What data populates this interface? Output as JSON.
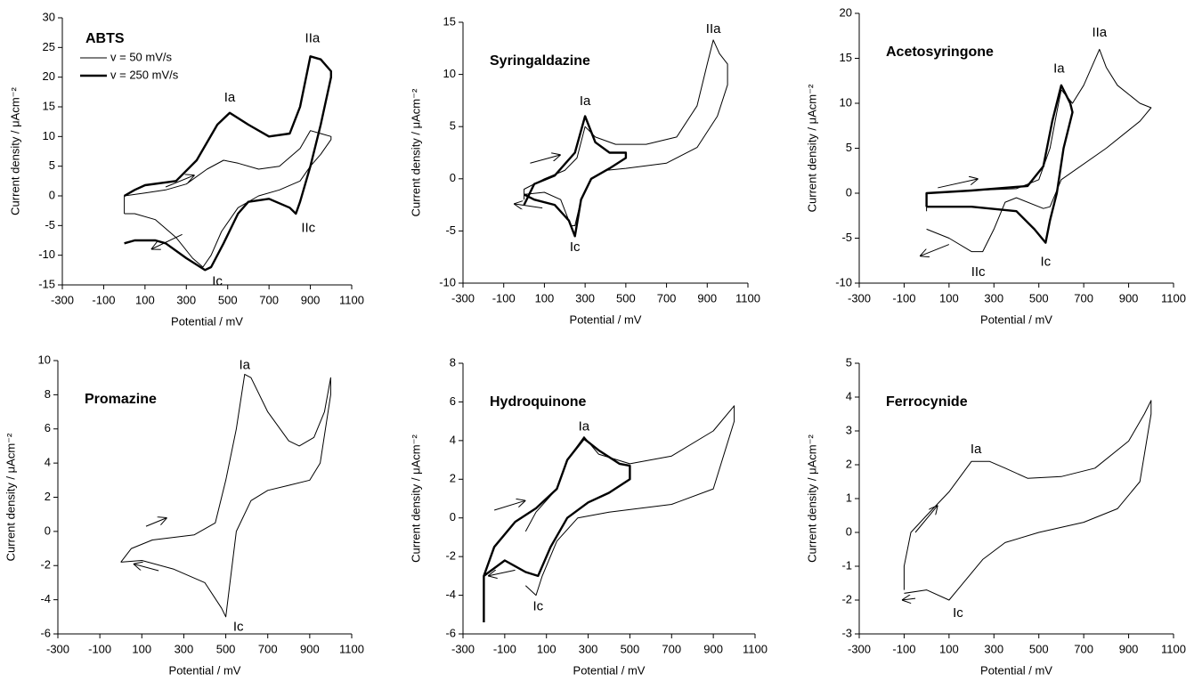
{
  "chart_data": [
    {
      "type": "line",
      "title": "ABTS",
      "xlabel": "Potential / mV",
      "ylabel": "Current density / μAcm⁻²",
      "xlim": [
        -300,
        1100
      ],
      "xticks": [
        -300,
        -100,
        100,
        300,
        500,
        700,
        900,
        1100
      ],
      "ylim": [
        -15,
        30
      ],
      "yticks": [
        -15,
        -10,
        -5,
        0,
        5,
        10,
        15,
        20,
        25,
        30
      ],
      "legend": "upper left",
      "series": [
        {
          "name": "v = 50 mV/s",
          "color": "#000000",
          "linewidth": 1,
          "x": [
            0,
            0,
            100,
            200,
            300,
            400,
            480,
            550,
            650,
            750,
            850,
            900,
            950,
            1000,
            1000,
            950,
            900,
            850,
            750,
            650,
            550,
            470,
            420,
            380,
            330,
            250,
            150,
            50,
            0
          ],
          "values": [
            -3,
            0,
            0.5,
            1,
            2,
            4.5,
            6,
            5.5,
            4.5,
            5,
            8,
            11,
            10.5,
            10,
            9.5,
            7,
            5,
            2.5,
            1,
            0,
            -2,
            -6,
            -10,
            -12,
            -10.5,
            -7,
            -4,
            -3,
            -3
          ]
        },
        {
          "name": "v = 250 mV/s",
          "color": "#000000",
          "linewidth": 2.4,
          "x": [
            0,
            50,
            100,
            250,
            350,
            450,
            510,
            600,
            700,
            800,
            850,
            900,
            950,
            1000,
            1000,
            950,
            900,
            850,
            830,
            800,
            700,
            600,
            550,
            480,
            420,
            390,
            300,
            200,
            150,
            50,
            0
          ],
          "values": [
            0,
            1,
            1.8,
            2.5,
            6,
            12,
            14,
            12,
            10,
            10.5,
            15,
            23.5,
            23,
            21,
            20,
            12,
            5,
            -1,
            -3,
            -2,
            -0.5,
            -1,
            -3,
            -8,
            -12,
            -12.5,
            -10.5,
            -8,
            -7.5,
            -7.5,
            -8
          ]
        }
      ],
      "annotations": [
        {
          "text": "Ia",
          "x": 510,
          "y": 16.5
        },
        {
          "text": "IIa",
          "x": 910,
          "y": 26.5
        },
        {
          "text": "IIc",
          "x": 890,
          "y": -5.5
        },
        {
          "text": "Ic",
          "x": 450,
          "y": -14.5
        }
      ],
      "arrows": [
        [
          200,
          1.5,
          340,
          3.5
        ],
        [
          280,
          -6.5,
          130,
          -9
        ]
      ]
    },
    {
      "type": "line",
      "title": "Syringaldazine",
      "xlabel": "Potential / mV",
      "ylabel": "Current density / μAcm⁻²",
      "xlim": [
        -300,
        1100
      ],
      "xticks": [
        -300,
        -100,
        100,
        300,
        500,
        700,
        900,
        1100
      ],
      "ylim": [
        -10,
        15
      ],
      "yticks": [
        -10,
        -5,
        0,
        5,
        10,
        15
      ],
      "series": [
        {
          "color": "#000000",
          "linewidth": 1,
          "x": [
            0,
            0,
            100,
            200,
            260,
            300,
            350,
            450,
            600,
            750,
            850,
            900,
            930,
            960,
            1000,
            1000,
            950,
            850,
            700,
            500,
            400,
            330,
            280,
            250,
            230,
            180,
            100,
            0
          ],
          "values": [
            -2,
            -1,
            0,
            0.8,
            2,
            5,
            4,
            3.3,
            3.3,
            4,
            7,
            11,
            13.3,
            12,
            11,
            9,
            6,
            3,
            1.5,
            1,
            0.8,
            0,
            -2,
            -4.5,
            -4.5,
            -2,
            -1.3,
            -1.5
          ]
        },
        {
          "color": "#000000",
          "linewidth": 2.4,
          "x": [
            0,
            50,
            150,
            250,
            300,
            350,
            420,
            500,
            500,
            420,
            330,
            280,
            250,
            220,
            150,
            50,
            0
          ],
          "values": [
            -2.5,
            -0.5,
            0.3,
            2.5,
            6,
            3.5,
            2.5,
            2.5,
            2,
            1,
            0,
            -2,
            -5.5,
            -4,
            -2.5,
            -2,
            -1.5
          ]
        }
      ],
      "annotations": [
        {
          "text": "Ia",
          "x": 300,
          "y": 7.4
        },
        {
          "text": "IIa",
          "x": 930,
          "y": 14.3
        },
        {
          "text": "Ic",
          "x": 250,
          "y": -6.6
        }
      ],
      "arrows": [
        [
          30,
          1.5,
          180,
          2.3
        ],
        [
          90,
          -2.8,
          -50,
          -2.4
        ]
      ]
    },
    {
      "type": "line",
      "title": "Acetosyringone",
      "xlabel": "Potential / mV",
      "ylabel": "Current density / μAcm⁻²",
      "xlim": [
        -300,
        1100
      ],
      "xticks": [
        -300,
        -100,
        100,
        300,
        500,
        700,
        900,
        1100
      ],
      "ylim": [
        -10,
        20
      ],
      "yticks": [
        -10,
        -5,
        0,
        5,
        10,
        15,
        20
      ],
      "series": [
        {
          "color": "#000000",
          "linewidth": 1,
          "x": [
            0,
            0,
            200,
            400,
            500,
            550,
            580,
            600,
            650,
            700,
            770,
            800,
            850,
            950,
            1000,
            950,
            800,
            600,
            550,
            520,
            400,
            350,
            300,
            250,
            200,
            100,
            0
          ],
          "values": [
            -2,
            0,
            0.3,
            0.5,
            1.5,
            5,
            9,
            11.5,
            10,
            12,
            16,
            14,
            12,
            10,
            9.5,
            8,
            5,
            1.5,
            -1.5,
            -1.7,
            -0.5,
            -1,
            -4,
            -6.5,
            -6.5,
            -5,
            -4
          ]
        },
        {
          "color": "#000000",
          "linewidth": 2.4,
          "x": [
            0,
            0,
            200,
            450,
            520,
            560,
            600,
            640,
            650,
            610,
            580,
            550,
            530,
            480,
            400,
            200,
            0
          ],
          "values": [
            -1.5,
            0,
            0.3,
            0.8,
            3,
            8,
            12,
            10,
            9,
            5,
            0,
            -3,
            -5.5,
            -4,
            -2,
            -1.5,
            -1.5
          ]
        }
      ],
      "annotations": [
        {
          "text": "Ia",
          "x": 590,
          "y": 13.8
        },
        {
          "text": "IIa",
          "x": 770,
          "y": 17.8
        },
        {
          "text": "IIc",
          "x": 230,
          "y": -8.8
        },
        {
          "text": "Ic",
          "x": 530,
          "y": -7.7
        }
      ],
      "arrows": [
        [
          50,
          0.6,
          230,
          1.6
        ],
        [
          100,
          -5.7,
          -30,
          -7
        ]
      ]
    },
    {
      "type": "line",
      "title": "Promazine",
      "xlabel": "Potential / mV",
      "ylabel": "Current density / μAcm⁻²",
      "xlim": [
        -300,
        1100
      ],
      "xticks": [
        -300,
        -100,
        100,
        300,
        500,
        700,
        900,
        1100
      ],
      "ylim": [
        -6,
        10
      ],
      "yticks": [
        -6,
        -4,
        -2,
        0,
        2,
        4,
        6,
        8,
        10
      ],
      "series": [
        {
          "color": "#000000",
          "linewidth": 1,
          "x": [
            0,
            50,
            150,
            350,
            450,
            500,
            550,
            590,
            620,
            700,
            800,
            850,
            920,
            970,
            1000,
            1000,
            950,
            900,
            800,
            700,
            620,
            550,
            520,
            500,
            480,
            400,
            250,
            100,
            0
          ],
          "values": [
            -1.8,
            -1,
            -0.5,
            -0.2,
            0.5,
            3,
            6,
            9.2,
            9,
            7,
            5.3,
            5,
            5.5,
            7,
            9,
            8,
            4,
            3,
            2.7,
            2.4,
            1.8,
            0,
            -3,
            -5,
            -4.5,
            -3,
            -2.2,
            -1.7,
            -1.8
          ]
        }
      ],
      "annotations": [
        {
          "text": "Ia",
          "x": 590,
          "y": 9.7
        },
        {
          "text": "Ic",
          "x": 560,
          "y": -5.6
        }
      ],
      "arrows": [
        [
          120,
          0.3,
          220,
          0.8
        ],
        [
          180,
          -2.3,
          60,
          -1.9
        ]
      ]
    },
    {
      "type": "line",
      "title": "Hydroquinone",
      "xlabel": "Potential / mV",
      "ylabel": "Current density / μAcm⁻²",
      "xlim": [
        -300,
        1100
      ],
      "xticks": [
        -300,
        -100,
        100,
        300,
        500,
        700,
        900,
        1100
      ],
      "ylim": [
        -6,
        8
      ],
      "yticks": [
        -6,
        -4,
        -2,
        0,
        2,
        4,
        6,
        8
      ],
      "series": [
        {
          "color": "#000000",
          "linewidth": 1,
          "x": [
            0,
            50,
            150,
            200,
            280,
            350,
            500,
            700,
            900,
            1000,
            1000,
            900,
            700,
            400,
            250,
            150,
            80,
            50,
            0
          ],
          "values": [
            -0.7,
            0.3,
            1.5,
            3,
            4.2,
            3.3,
            2.8,
            3.2,
            4.5,
            5.8,
            5,
            1.5,
            0.7,
            0.3,
            0,
            -1.2,
            -3,
            -4,
            -3.5
          ]
        },
        {
          "color": "#000000",
          "linewidth": 2.4,
          "x": [
            -200,
            -200,
            -150,
            -50,
            50,
            150,
            200,
            280,
            350,
            450,
            500,
            500,
            400,
            300,
            200,
            120,
            60,
            0,
            -100,
            -200
          ],
          "values": [
            -5.4,
            -3,
            -1.5,
            -0.2,
            0.5,
            1.5,
            3,
            4.1,
            3.5,
            2.8,
            2.7,
            2,
            1.3,
            0.8,
            0,
            -1.5,
            -3,
            -2.8,
            -2.2,
            -3
          ]
        }
      ],
      "annotations": [
        {
          "text": "Ia",
          "x": 280,
          "y": 4.7
        },
        {
          "text": "Ic",
          "x": 60,
          "y": -4.6
        }
      ],
      "arrows": [
        [
          -150,
          0.4,
          0,
          0.9
        ],
        [
          -50,
          -2.7,
          -180,
          -3
        ]
      ]
    },
    {
      "type": "line",
      "title": "Ferrocynide",
      "xlabel": "Potential / mV",
      "ylabel": "Current density / μAcm⁻²",
      "xlim": [
        -300,
        1100
      ],
      "xticks": [
        -300,
        -100,
        100,
        300,
        500,
        700,
        900,
        1100
      ],
      "ylim": [
        -3,
        5
      ],
      "yticks": [
        -3,
        -2,
        -1,
        0,
        1,
        2,
        3,
        4,
        5
      ],
      "series": [
        {
          "color": "#000000",
          "linewidth": 1,
          "x": [
            -100,
            -100,
            -70,
            0,
            100,
            200,
            280,
            350,
            450,
            600,
            750,
            900,
            970,
            1000,
            1000,
            950,
            850,
            700,
            500,
            350,
            250,
            150,
            100,
            0,
            -100
          ],
          "values": [
            -1.7,
            -1,
            0,
            0.5,
            1.2,
            2.1,
            2.1,
            1.9,
            1.6,
            1.65,
            1.9,
            2.7,
            3.5,
            3.9,
            3.5,
            1.5,
            0.7,
            0.3,
            0,
            -0.3,
            -0.8,
            -1.6,
            -2,
            -1.7,
            -1.8
          ]
        }
      ],
      "annotations": [
        {
          "text": "Ia",
          "x": 220,
          "y": 2.45
        },
        {
          "text": "Ic",
          "x": 140,
          "y": -2.4
        }
      ],
      "arrows": [
        [
          -50,
          0,
          50,
          0.8
        ],
        [
          -50,
          -1.95,
          -110,
          -2
        ]
      ]
    }
  ]
}
